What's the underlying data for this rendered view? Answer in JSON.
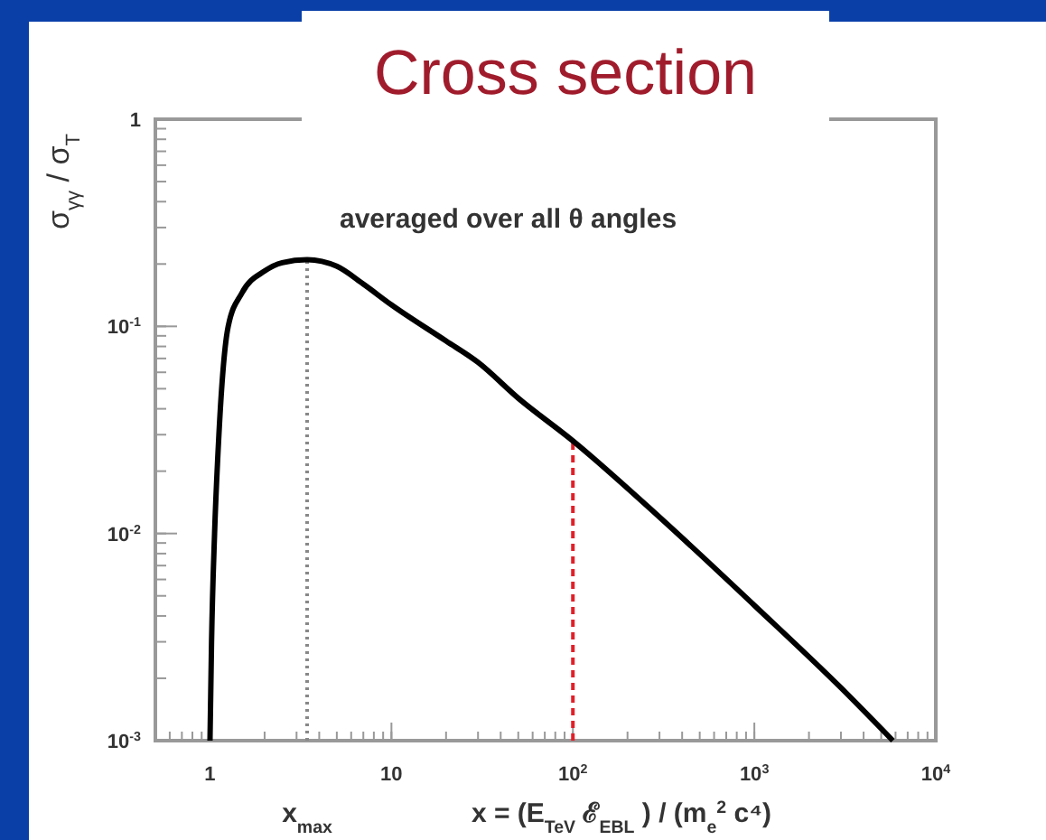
{
  "chart_data": {
    "type": "line",
    "title": "Cross section",
    "xlabel": "x = (E$_{TeV}$ ℰ$_{EBL}$ ) / (m$_{e}$$^{2}$ c⁴)",
    "ylabel": "σ$_{γγ}$ / σ$_{T}$",
    "annotations": [
      "averaged over all θ  angles"
    ],
    "log": "xy",
    "grid": false,
    "marker": "none",
    "line_style": "solid",
    "xlim": [
      0.5,
      10000
    ],
    "ylim": [
      0.001,
      1
    ],
    "xticks": [
      1,
      10,
      {
        "value": 100,
        "label": "10$^{2}$"
      },
      {
        "value": 1000,
        "label": "10$^{3}$"
      },
      {
        "value": 10000,
        "label": "10$^{4}$"
      }
    ],
    "yticks": [
      {
        "value": 0.001,
        "label": "10$^{-3}$"
      },
      {
        "value": 0.01,
        "label": "10$^{-2}$"
      },
      {
        "value": 0.1,
        "label": "10$^{-1}$"
      },
      1
    ],
    "ref_lines": [
      {
        "axis": "x",
        "value": 3.43,
        "label": "x$_{max}$",
        "color": "#888888",
        "line_style": "dotted"
      },
      {
        "axis": "x",
        "value": 100,
        "label": null,
        "color": "#e0202a",
        "line_style": "dashed"
      }
    ],
    "series": [
      {
        "color": "#000000",
        "x": [
          1,
          1.02,
          1.06,
          1.12,
          1.26,
          1.5,
          2,
          2.5,
          3.43,
          5,
          7,
          10,
          20,
          30,
          50,
          100,
          300,
          1000,
          3000,
          5800
        ],
        "values": [
          0.001,
          0.003,
          0.01,
          0.03,
          0.1,
          0.145,
          0.185,
          0.203,
          0.21,
          0.195,
          0.16,
          0.127,
          0.085,
          0.067,
          0.045,
          0.028,
          0.012,
          0.0045,
          0.0018,
          0.001
        ]
      }
    ]
  }
}
